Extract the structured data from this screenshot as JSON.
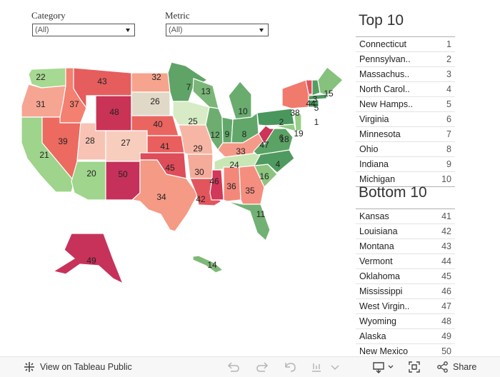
{
  "filters": {
    "category": {
      "label": "Category",
      "value": "(All)"
    },
    "metric": {
      "label": "Metric",
      "value": "(All)"
    }
  },
  "top10": {
    "title": "Top 10",
    "rows": [
      {
        "name": "Connecticut",
        "rank": "1"
      },
      {
        "name": "Pennsylvan..",
        "rank": "2"
      },
      {
        "name": "Massachus..",
        "rank": "3"
      },
      {
        "name": "North Carol..",
        "rank": "4"
      },
      {
        "name": "New Hamps..",
        "rank": "5"
      },
      {
        "name": "Virginia",
        "rank": "6"
      },
      {
        "name": "Minnesota",
        "rank": "7"
      },
      {
        "name": "Ohio",
        "rank": "8"
      },
      {
        "name": "Indiana",
        "rank": "9"
      },
      {
        "name": "Michigan",
        "rank": "10"
      }
    ]
  },
  "bottom10": {
    "title": "Bottom 10",
    "rows": [
      {
        "name": "Kansas",
        "rank": "41"
      },
      {
        "name": "Louisiana",
        "rank": "42"
      },
      {
        "name": "Montana",
        "rank": "43"
      },
      {
        "name": "Vermont",
        "rank": "44"
      },
      {
        "name": "Oklahoma",
        "rank": "45"
      },
      {
        "name": "Mississippi",
        "rank": "46"
      },
      {
        "name": "West Virgin..",
        "rank": "47"
      },
      {
        "name": "Wyoming",
        "rank": "48"
      },
      {
        "name": "Alaska",
        "rank": "49"
      },
      {
        "name": "New Mexico",
        "rank": "50"
      }
    ]
  },
  "map": {
    "states": [
      {
        "id": "WA",
        "rank": 22,
        "color": "#a6d991"
      },
      {
        "id": "OR",
        "rank": 31,
        "color": "#f6a593"
      },
      {
        "id": "CA",
        "rank": 21,
        "color": "#9ed48b"
      },
      {
        "id": "ID",
        "rank": 37,
        "color": "#f38070"
      },
      {
        "id": "NV",
        "rank": 39,
        "color": "#ec6a60"
      },
      {
        "id": "MT",
        "rank": 43,
        "color": "#e65d5e"
      },
      {
        "id": "WY",
        "rank": 48,
        "color": "#c93356"
      },
      {
        "id": "UT",
        "rank": 28,
        "color": "#f8c3b4"
      },
      {
        "id": "CO",
        "rank": 27,
        "color": "#f7cdbd"
      },
      {
        "id": "AZ",
        "rank": 20,
        "color": "#9fd58c"
      },
      {
        "id": "NM",
        "rank": 50,
        "color": "#c5315a"
      },
      {
        "id": "ND",
        "rank": 32,
        "color": "#f7a48f"
      },
      {
        "id": "SD",
        "rank": 26,
        "color": "#e1d9c8"
      },
      {
        "id": "NE",
        "rank": 40,
        "color": "#ea6560"
      },
      {
        "id": "KS",
        "rank": 41,
        "color": "#e85f5e"
      },
      {
        "id": "OK",
        "rank": 45,
        "color": "#de4d5a"
      },
      {
        "id": "TX",
        "rank": 34,
        "color": "#f49a85"
      },
      {
        "id": "MN",
        "rank": 7,
        "color": "#5fa466"
      },
      {
        "id": "IA",
        "rank": 25,
        "color": "#d7ecc6"
      },
      {
        "id": "MO",
        "rank": 29,
        "color": "#f7b6a5"
      },
      {
        "id": "AR",
        "rank": 30,
        "color": "#f5ab99"
      },
      {
        "id": "LA",
        "rank": 42,
        "color": "#e3555c"
      },
      {
        "id": "WI",
        "rank": 13,
        "color": "#7ab677"
      },
      {
        "id": "IL",
        "rank": 12,
        "color": "#6dae70"
      },
      {
        "id": "MI",
        "rank": 10,
        "color": "#6aac6e"
      },
      {
        "id": "IN",
        "rank": 9,
        "color": "#63a86b"
      },
      {
        "id": "OH",
        "rank": 8,
        "color": "#62a76a"
      },
      {
        "id": "KY",
        "rank": 33,
        "color": "#f59a88"
      },
      {
        "id": "TN",
        "rank": 24,
        "color": "#c9e6b5"
      },
      {
        "id": "MS",
        "rank": 46,
        "color": "#d1385a"
      },
      {
        "id": "AL",
        "rank": 36,
        "color": "#f3887a"
      },
      {
        "id": "GA",
        "rank": 35,
        "color": "#f48e7f"
      },
      {
        "id": "FL",
        "rank": 11,
        "color": "#72b173"
      },
      {
        "id": "SC",
        "rank": 16,
        "color": "#8cc47f"
      },
      {
        "id": "NC",
        "rank": 4,
        "color": "#4f9a60"
      },
      {
        "id": "VA",
        "rank": 6,
        "color": "#5ba265"
      },
      {
        "id": "WV",
        "rank": 47,
        "color": "#cc3558"
      },
      {
        "id": "PA",
        "rank": 2,
        "color": "#4a975e"
      },
      {
        "id": "NY",
        "rank": 38,
        "color": "#f07a6c"
      },
      {
        "id": "VT",
        "rank": 44,
        "color": "#e2505c"
      },
      {
        "id": "NH",
        "rank": 5,
        "color": "#559e63"
      },
      {
        "id": "ME",
        "rank": 15,
        "color": "#86c17d"
      },
      {
        "id": "MA",
        "rank": 3,
        "color": "#4c985f"
      },
      {
        "id": "CT",
        "rank": 1,
        "color": "#46945c"
      },
      {
        "id": "NJ",
        "rank": 19,
        "color": "#97cf88"
      },
      {
        "id": "MD",
        "rank": 18,
        "color": "#93cc85"
      },
      {
        "id": "AK",
        "rank": 49,
        "color": "#c7325a"
      },
      {
        "id": "HI",
        "rank": 14,
        "color": "#7eb978"
      }
    ]
  },
  "toolbar": {
    "view_label": "View on Tableau Public",
    "share_label": "Share"
  }
}
